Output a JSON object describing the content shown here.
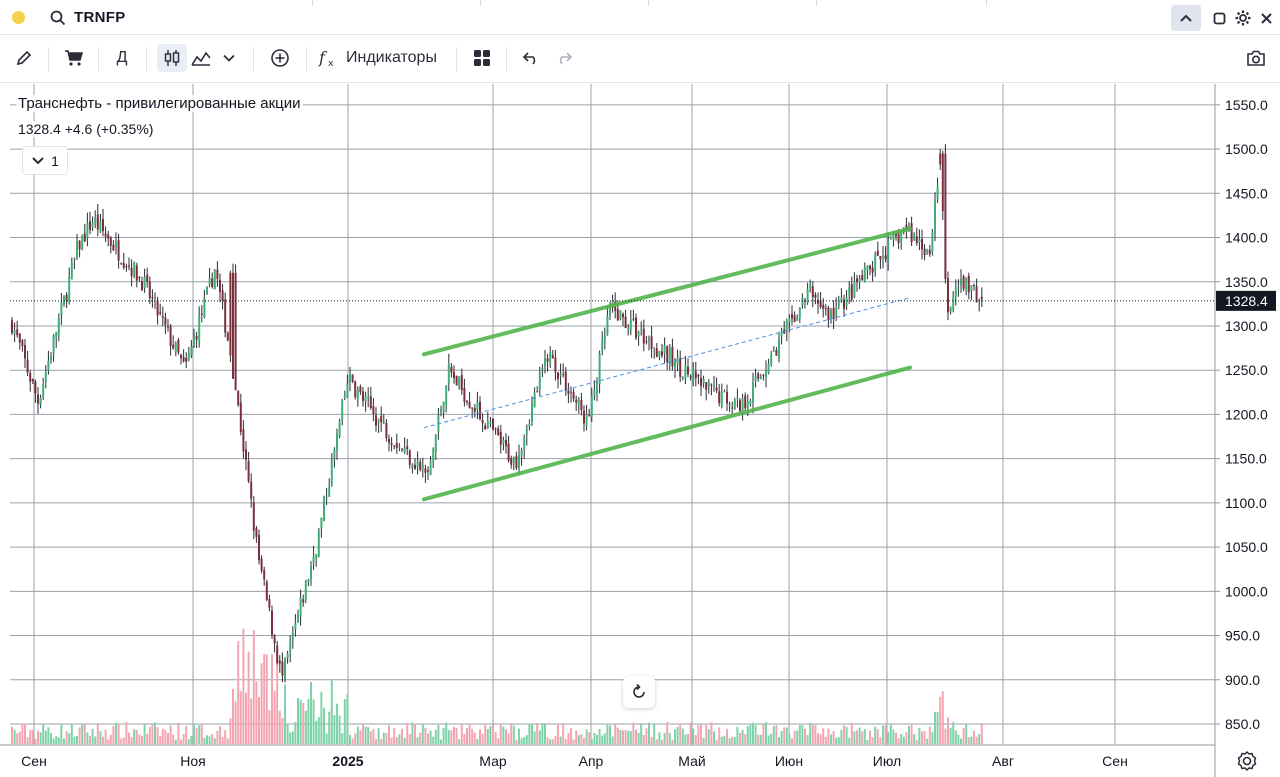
{
  "top_bar": {
    "ticker": "TRNFP"
  },
  "toolbar": {
    "period_label": "Д",
    "indicators_label": "Индикаторы"
  },
  "legend": {
    "title": "Транснефть - привилегированные акции",
    "price_line": "1328.4  +4.6 (+0.35%)",
    "collapse_count": "1"
  },
  "price_axis": [
    "1550.0",
    "1500.0",
    "1450.0",
    "1400.0",
    "1350.0",
    "1300.0",
    "1250.0",
    "1200.0",
    "1150.0",
    "1100.0",
    "1050.0",
    "1000.0",
    "950.0",
    "900.0",
    "850.0"
  ],
  "time_axis": [
    "Сен",
    "Ноя",
    "2025",
    "Мар",
    "Апр",
    "Май",
    "Июн",
    "Июл",
    "Авг",
    "Сен"
  ],
  "current_price_label": "1328.4",
  "colors": {
    "up": "#3fae74",
    "down": "#7a2f3b",
    "vol_up": "#7fd3a8",
    "vol_down": "#f3a6b2",
    "channel": "#52b44b",
    "midline": "#4a90e2"
  },
  "chart_data": {
    "type": "candlestick",
    "title": "Транснефть - привилегированные акции",
    "last": 1328.4,
    "change": 4.6,
    "change_pct": 0.35,
    "ylim": [
      830,
      1570
    ],
    "x_labels": [
      "Сен",
      "Ноя",
      "2025",
      "Мар",
      "Апр",
      "Май",
      "Июн",
      "Июл",
      "Авг",
      "Сен"
    ],
    "key_closes": [
      {
        "t": "Сен",
        "price": 1310
      },
      {
        "t": "Сен",
        "price": 1215
      },
      {
        "t": "Сен",
        "price": 1390
      },
      {
        "t": "Сен",
        "price": 1420
      },
      {
        "t": "Ноя",
        "price": 1350
      },
      {
        "t": "Ноя",
        "price": 1250
      },
      {
        "t": "Ноя",
        "price": 1365
      },
      {
        "t": "Ноя",
        "price": 1260
      },
      {
        "t": "Ноя",
        "price": 1040
      },
      {
        "t": "Ноя",
        "price": 900
      },
      {
        "t": "2025",
        "price": 1060
      },
      {
        "t": "2025",
        "price": 1240
      },
      {
        "t": "2025",
        "price": 1180
      },
      {
        "t": "Мар",
        "price": 1130
      },
      {
        "t": "Мар",
        "price": 1250
      },
      {
        "t": "Мар",
        "price": 1145
      },
      {
        "t": "Апр",
        "price": 1270
      },
      {
        "t": "Апр",
        "price": 1190
      },
      {
        "t": "Апр",
        "price": 1320
      },
      {
        "t": "Май",
        "price": 1230
      },
      {
        "t": "Май",
        "price": 1210
      },
      {
        "t": "Июн",
        "price": 1340
      },
      {
        "t": "Июн",
        "price": 1310
      },
      {
        "t": "Июл",
        "price": 1410
      },
      {
        "t": "Июл",
        "price": 1385
      },
      {
        "t": "Июл",
        "price": 1495
      },
      {
        "t": "Июл",
        "price": 1310
      },
      {
        "t": "Июл",
        "price": 1350
      },
      {
        "t": "Июл",
        "price": 1328.4
      }
    ],
    "drawings": [
      {
        "type": "channel-upper",
        "from": {
          "t": "Мар",
          "price": 1268
        },
        "to": {
          "t": "Июл",
          "price": 1410
        }
      },
      {
        "type": "channel-lower",
        "from": {
          "t": "Мар",
          "price": 1104
        },
        "to": {
          "t": "Июл",
          "price": 1253
        }
      },
      {
        "type": "channel-mid",
        "from": {
          "t": "Мар",
          "price": 1185
        },
        "to": {
          "t": "Июл",
          "price": 1332
        }
      }
    ]
  }
}
